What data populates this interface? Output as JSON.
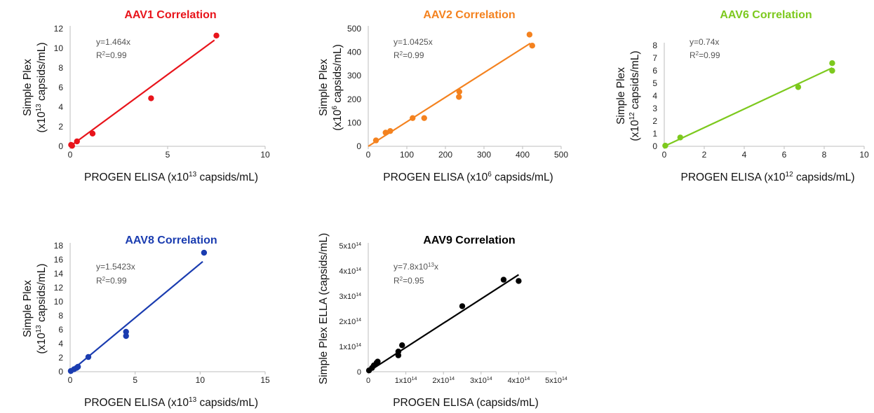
{
  "chart_data": [
    {
      "type": "scatter",
      "title": "AAV1 Correlation",
      "color": "#e8141b",
      "xlabel": {
        "text": "PROGEN ELISA (x10",
        "sup": "13",
        "tail": " capsids/mL)"
      },
      "ylabel": {
        "line1": "Simple Plex",
        "line2": "(x10",
        "sup": "13",
        "tail": " capsids/mL)"
      },
      "xlim": [
        0,
        10
      ],
      "ylim": [
        0,
        12
      ],
      "xticks": [
        "0",
        "5",
        "10"
      ],
      "xtick_values": [
        0,
        5,
        10
      ],
      "yticks": [
        "0",
        "2",
        "4",
        "6",
        "8",
        "10",
        "12"
      ],
      "ytick_values": [
        0,
        2,
        4,
        6,
        8,
        10,
        12
      ],
      "equation": {
        "text": "y=1.464x",
        "sup": ""
      },
      "r2": {
        "pre": "R",
        "sup": "2",
        "post": "=0.99"
      },
      "points": [
        [
          0.05,
          0.15
        ],
        [
          0.1,
          0.05
        ],
        [
          0.35,
          0.5
        ],
        [
          1.15,
          1.3
        ],
        [
          4.15,
          4.9
        ],
        [
          7.5,
          11.3
        ]
      ],
      "trendline": [
        [
          0,
          0
        ],
        [
          7.4,
          10.83
        ]
      ]
    },
    {
      "type": "scatter",
      "title": "AAV2 Correlation",
      "color": "#f4821f",
      "xlabel": {
        "text": "PROGEN ELISA (x10",
        "sup": "6",
        "tail": " capsids/mL)"
      },
      "ylabel": {
        "line1": "Simple Plex",
        "line2": "(x10",
        "sup": "6",
        "tail": " capsids/mL)"
      },
      "xlim": [
        0,
        500
      ],
      "ylim": [
        0,
        500
      ],
      "xticks": [
        "0",
        "100",
        "200",
        "300",
        "400",
        "500"
      ],
      "xtick_values": [
        0,
        100,
        200,
        300,
        400,
        500
      ],
      "yticks": [
        "0",
        "100",
        "200",
        "300",
        "400",
        "500"
      ],
      "ytick_values": [
        0,
        100,
        200,
        300,
        400,
        500
      ],
      "equation": {
        "text": "y=1.0425x",
        "sup": ""
      },
      "r2": {
        "pre": "R",
        "sup": "2",
        "post": "=0.99"
      },
      "points": [
        [
          20,
          25
        ],
        [
          45,
          58
        ],
        [
          57,
          65
        ],
        [
          115,
          120
        ],
        [
          145,
          120
        ],
        [
          235,
          210
        ],
        [
          236,
          232
        ],
        [
          418,
          475
        ],
        [
          425,
          428
        ]
      ],
      "trendline": [
        [
          0,
          0
        ],
        [
          420,
          437.9
        ]
      ]
    },
    {
      "type": "scatter",
      "title": "AAV6 Correlation",
      "color": "#7dc91e",
      "xlabel": {
        "text": "PROGEN ELISA (x10",
        "sup": "12",
        "tail": " capsids/mL)"
      },
      "ylabel": {
        "line1": "Simple Plex",
        "line2": "(x10",
        "sup": "12",
        "tail": " capsids/mL)"
      },
      "xlim": [
        0,
        10
      ],
      "ylim": [
        0,
        8
      ],
      "xticks": [
        "0",
        "2",
        "4",
        "6",
        "8",
        "10"
      ],
      "xtick_values": [
        0,
        2,
        4,
        6,
        8,
        10
      ],
      "yticks": [
        "0",
        "1",
        "2",
        "3",
        "4",
        "5",
        "6",
        "7",
        "8"
      ],
      "ytick_values": [
        0,
        1,
        2,
        3,
        4,
        5,
        6,
        7,
        8
      ],
      "equation": {
        "text": "y=0.74x",
        "sup": ""
      },
      "r2": {
        "pre": "R",
        "sup": "2",
        "post": "=0.99"
      },
      "points": [
        [
          0.05,
          0.05
        ],
        [
          0.8,
          0.7
        ],
        [
          6.7,
          4.7
        ],
        [
          8.4,
          6.0
        ],
        [
          8.4,
          6.6
        ]
      ],
      "trendline": [
        [
          0,
          0
        ],
        [
          8.4,
          6.22
        ]
      ]
    },
    {
      "type": "scatter",
      "title": "AAV8 Correlation",
      "color": "#1a3cb0",
      "xlabel": {
        "text": "PROGEN ELISA (x10",
        "sup": "13",
        "tail": " capsids/mL)"
      },
      "ylabel": {
        "line1": "Simple Plex",
        "line2": "(x10",
        "sup": "13",
        "tail": " capsids/mL)"
      },
      "xlim": [
        0,
        15
      ],
      "ylim": [
        0,
        18
      ],
      "xticks": [
        "0",
        "5",
        "10",
        "15"
      ],
      "xtick_values": [
        0,
        5,
        10,
        15
      ],
      "yticks": [
        "0",
        "2",
        "4",
        "6",
        "8",
        "10",
        "12",
        "14",
        "16",
        "18"
      ],
      "ytick_values": [
        0,
        2,
        4,
        6,
        8,
        10,
        12,
        14,
        16,
        18
      ],
      "equation": {
        "text": "y=1.5423x",
        "sup": ""
      },
      "r2": {
        "pre": "R",
        "sup": "2",
        "post": "=0.99"
      },
      "points": [
        [
          0.05,
          0.1
        ],
        [
          0.3,
          0.35
        ],
        [
          0.5,
          0.55
        ],
        [
          0.6,
          0.7
        ],
        [
          1.4,
          2.1
        ],
        [
          4.3,
          5.1
        ],
        [
          4.3,
          5.7
        ],
        [
          10.3,
          17.0
        ]
      ],
      "trendline": [
        [
          0,
          0
        ],
        [
          10.2,
          15.73
        ]
      ]
    },
    {
      "type": "scatter",
      "title": "AAV9 Correlation",
      "color": "#000000",
      "xlabel": {
        "text": "PROGEN ELISA (capsids/mL)",
        "sup": "",
        "tail": ""
      },
      "ylabel": {
        "line1": "Simple Plex ELLA (capsids/mL)",
        "line2": "",
        "sup": "",
        "tail": ""
      },
      "xlim": [
        0,
        5
      ],
      "ylim": [
        0,
        5
      ],
      "xticks": [
        "0",
        "1x10",
        "2x10",
        "3x10",
        "4x10",
        "5x10"
      ],
      "xtick_sup": "14",
      "xtick_values": [
        0,
        1,
        2,
        3,
        4,
        5
      ],
      "yticks": [
        "0",
        "1x10",
        "2x10",
        "3x10",
        "4x10",
        "5x10"
      ],
      "ytick_sup": "14",
      "ytick_values": [
        0,
        1,
        2,
        3,
        4,
        5
      ],
      "equation": {
        "text": "y=7.8x10",
        "sup": "13",
        "post": "x"
      },
      "r2": {
        "pre": "R",
        "sup": "2",
        "post": "=0.95"
      },
      "points": [
        [
          0.02,
          0.05
        ],
        [
          0.1,
          0.15
        ],
        [
          0.15,
          0.25
        ],
        [
          0.22,
          0.35
        ],
        [
          0.25,
          0.4
        ],
        [
          0.8,
          0.65
        ],
        [
          0.8,
          0.8
        ],
        [
          0.9,
          1.05
        ],
        [
          2.5,
          2.6
        ],
        [
          3.6,
          3.65
        ],
        [
          4.0,
          3.6
        ]
      ],
      "trendline": [
        [
          0,
          0
        ],
        [
          4.0,
          3.85
        ]
      ]
    }
  ]
}
